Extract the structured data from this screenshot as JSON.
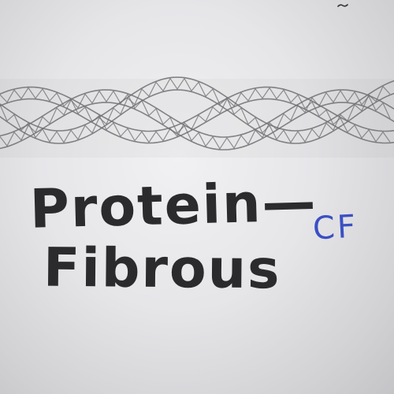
{
  "drawing": {
    "subject": "fibrous-protein-helix",
    "pencil_color": "#6e6e72",
    "paper_color": "#ececee"
  },
  "title": {
    "line1": "Protein—",
    "line2": "Fibrous",
    "ink_color": "#2b2b2e"
  },
  "initials": {
    "text": "CF",
    "ink_color": "#3b4fc4"
  }
}
